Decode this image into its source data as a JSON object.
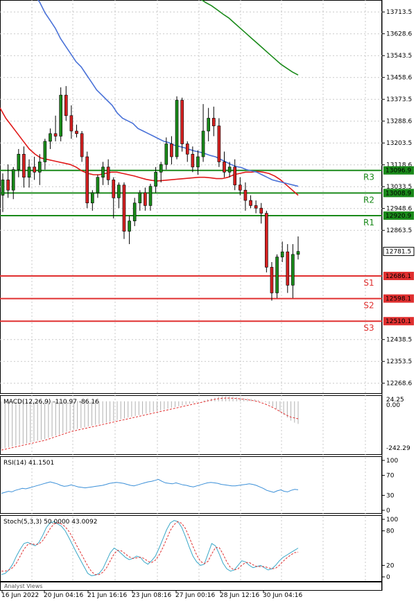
{
  "colors": {
    "bull": "#1a8a1a",
    "bear": "#d42020",
    "resistance": "#1a8a1a",
    "support": "#e03030",
    "ma_red": "#e01818",
    "ma_blue": "#4a72d8",
    "ma_green": "#1a8a1a",
    "macd_signal": "#e03030",
    "macd_hist": "#b0b0b0",
    "rsi": "#3a8fd8",
    "stoch_k": "#3aa8c8",
    "stoch_d": "#e03030",
    "current_price_box": "#ffffff"
  },
  "chart_data": [
    {
      "type": "candlestick",
      "ylim": [
        12230,
        13760
      ],
      "y_ticks": [
        "13713.5",
        "13628.6",
        "13543.5",
        "13458.6",
        "13373.5",
        "13288.6",
        "13203.5",
        "13118.6",
        "13033.5",
        "12948.6",
        "12863.5",
        "12438.5",
        "12353.5",
        "12268.6"
      ],
      "x_ticks": [
        "16 Jun 2022",
        "20 Jun 04:16",
        "21 Jun 16:16",
        "23 Jun 08:16",
        "27 Jun 00:16",
        "28 Jun 12:16",
        "30 Jun 04:16"
      ],
      "current_price": "12781.5",
      "levels": [
        {
          "name": "R3",
          "value": "13096.9",
          "kind": "resistance"
        },
        {
          "name": "R2",
          "value": "13008.9",
          "kind": "resistance"
        },
        {
          "name": "R1",
          "value": "12920.9",
          "kind": "resistance"
        },
        {
          "name": "S1",
          "value": "12686.1",
          "kind": "support"
        },
        {
          "name": "S2",
          "value": "12598.1",
          "kind": "support"
        },
        {
          "name": "S3",
          "value": "12510.1",
          "kind": "support"
        }
      ],
      "candles": [
        {
          "o": 13000,
          "h": 13085,
          "l": 12935,
          "c": 13060
        },
        {
          "o": 13060,
          "h": 13120,
          "l": 12990,
          "c": 13020
        },
        {
          "o": 13020,
          "h": 13110,
          "l": 12985,
          "c": 13100
        },
        {
          "o": 13100,
          "h": 13180,
          "l": 13070,
          "c": 13160
        },
        {
          "o": 13160,
          "h": 13190,
          "l": 13030,
          "c": 13070
        },
        {
          "o": 13070,
          "h": 13140,
          "l": 13030,
          "c": 13110
        },
        {
          "o": 13110,
          "h": 13150,
          "l": 13060,
          "c": 13090
        },
        {
          "o": 13090,
          "h": 13160,
          "l": 13040,
          "c": 13130
        },
        {
          "o": 13130,
          "h": 13220,
          "l": 13100,
          "c": 13210
        },
        {
          "o": 13210,
          "h": 13260,
          "l": 13180,
          "c": 13240
        },
        {
          "o": 13240,
          "h": 13310,
          "l": 13210,
          "c": 13230
        },
        {
          "o": 13230,
          "h": 13420,
          "l": 13210,
          "c": 13390
        },
        {
          "o": 13390,
          "h": 13425,
          "l": 13290,
          "c": 13310
        },
        {
          "o": 13310,
          "h": 13350,
          "l": 13220,
          "c": 13250
        },
        {
          "o": 13250,
          "h": 13275,
          "l": 13225,
          "c": 13240
        },
        {
          "o": 13240,
          "h": 13250,
          "l": 13130,
          "c": 13150
        },
        {
          "o": 13150,
          "h": 13170,
          "l": 12950,
          "c": 12970
        },
        {
          "o": 12970,
          "h": 13020,
          "l": 12940,
          "c": 13010
        },
        {
          "o": 13010,
          "h": 13080,
          "l": 12990,
          "c": 13070
        },
        {
          "o": 13070,
          "h": 13130,
          "l": 13040,
          "c": 13110
        },
        {
          "o": 13110,
          "h": 13140,
          "l": 13040,
          "c": 13060
        },
        {
          "o": 13060,
          "h": 13070,
          "l": 12910,
          "c": 12990
        },
        {
          "o": 12990,
          "h": 13050,
          "l": 12950,
          "c": 13040
        },
        {
          "o": 13040,
          "h": 13050,
          "l": 12830,
          "c": 12860
        },
        {
          "o": 12860,
          "h": 12920,
          "l": 12810,
          "c": 12900
        },
        {
          "o": 12900,
          "h": 12990,
          "l": 12880,
          "c": 12970
        },
        {
          "o": 12970,
          "h": 13020,
          "l": 12940,
          "c": 13010
        },
        {
          "o": 13010,
          "h": 13030,
          "l": 12940,
          "c": 12960
        },
        {
          "o": 12960,
          "h": 13045,
          "l": 12940,
          "c": 13035
        },
        {
          "o": 13035,
          "h": 13110,
          "l": 13010,
          "c": 13090
        },
        {
          "o": 13090,
          "h": 13130,
          "l": 13050,
          "c": 13120
        },
        {
          "o": 13120,
          "h": 13225,
          "l": 13100,
          "c": 13200
        },
        {
          "o": 13200,
          "h": 13230,
          "l": 13120,
          "c": 13150
        },
        {
          "o": 13150,
          "h": 13385,
          "l": 13140,
          "c": 13370
        },
        {
          "o": 13370,
          "h": 13380,
          "l": 13170,
          "c": 13200
        },
        {
          "o": 13200,
          "h": 13210,
          "l": 13130,
          "c": 13160
        },
        {
          "o": 13160,
          "h": 13190,
          "l": 13090,
          "c": 13110
        },
        {
          "o": 13110,
          "h": 13175,
          "l": 13080,
          "c": 13150
        },
        {
          "o": 13150,
          "h": 13355,
          "l": 13130,
          "c": 13250
        },
        {
          "o": 13250,
          "h": 13340,
          "l": 13210,
          "c": 13300
        },
        {
          "o": 13300,
          "h": 13345,
          "l": 13230,
          "c": 13270
        },
        {
          "o": 13270,
          "h": 13300,
          "l": 13110,
          "c": 13130
        },
        {
          "o": 13130,
          "h": 13170,
          "l": 13070,
          "c": 13090
        },
        {
          "o": 13090,
          "h": 13130,
          "l": 13070,
          "c": 13110
        },
        {
          "o": 13110,
          "h": 13140,
          "l": 13020,
          "c": 13040
        },
        {
          "o": 13040,
          "h": 13070,
          "l": 13000,
          "c": 13020
        },
        {
          "o": 13020,
          "h": 13050,
          "l": 12940,
          "c": 12980
        },
        {
          "o": 12980,
          "h": 13000,
          "l": 12950,
          "c": 12960
        },
        {
          "o": 12960,
          "h": 12980,
          "l": 12930,
          "c": 12950
        },
        {
          "o": 12950,
          "h": 12970,
          "l": 12890,
          "c": 12930
        },
        {
          "o": 12930,
          "h": 12940,
          "l": 12700,
          "c": 12720
        },
        {
          "o": 12720,
          "h": 12740,
          "l": 12590,
          "c": 12620
        },
        {
          "o": 12620,
          "h": 12770,
          "l": 12600,
          "c": 12760
        },
        {
          "o": 12760,
          "h": 12820,
          "l": 12740,
          "c": 12780
        },
        {
          "o": 12780,
          "h": 12810,
          "l": 12620,
          "c": 12650
        },
        {
          "o": 12650,
          "h": 12810,
          "l": 12600,
          "c": 12770
        },
        {
          "o": 12770,
          "h": 12840,
          "l": 12750,
          "c": 12781.5
        }
      ],
      "ma_red": [
        13340,
        13300,
        13270,
        13240,
        13210,
        13180,
        13160,
        13145,
        13140,
        13135,
        13130,
        13125,
        13120,
        13110,
        13095,
        13085,
        13080,
        13080,
        13085,
        13090,
        13090,
        13085,
        13080,
        13075,
        13068,
        13062,
        13058,
        13056,
        13058,
        13060,
        13062,
        13064,
        13066,
        13068,
        13070,
        13070,
        13068,
        13065,
        13065,
        13070,
        13080,
        13085,
        13090,
        13090,
        13093,
        13090,
        13085,
        13075,
        13060,
        13040,
        13020,
        13000
      ],
      "ma_blue": [
        13780,
        13750,
        13710,
        13680,
        13650,
        13610,
        13580,
        13550,
        13520,
        13500,
        13470,
        13440,
        13410,
        13390,
        13370,
        13350,
        13320,
        13300,
        13290,
        13280,
        13260,
        13250,
        13240,
        13230,
        13220,
        13210,
        13205,
        13195,
        13190,
        13185,
        13178,
        13172,
        13168,
        13162,
        13155,
        13150,
        13140,
        13130,
        13120,
        13112,
        13108,
        13100,
        13095,
        13090,
        13080,
        13070,
        13060,
        13055,
        13050,
        13045,
        13040,
        13035
      ],
      "ma_green": [
        13780,
        13765,
        13750,
        13738,
        13722,
        13705,
        13690,
        13670,
        13650,
        13630,
        13610,
        13590,
        13570,
        13550,
        13530,
        13510,
        13495,
        13480,
        13468
      ]
    },
    {
      "type": "line",
      "name": "MACD",
      "label": "MACD(12,26,9) -110.97 -86.16",
      "y_ticks": [
        "24.25",
        "0.00",
        "-242.29"
      ],
      "ylim": [
        -260,
        30
      ],
      "histogram": [
        -235,
        -230,
        -226,
        -222,
        -218,
        -214,
        -210,
        -206,
        -202,
        -198,
        -194,
        -190,
        -186,
        -180,
        -174,
        -168,
        -162,
        -156,
        -150,
        -144,
        -140,
        -136,
        -132,
        -128,
        -124,
        -120,
        -116,
        -112,
        -108,
        -104,
        -100,
        -96,
        -92,
        -88,
        -84,
        -80,
        -76,
        -72,
        -68,
        -64,
        -60,
        -56,
        -52,
        -48,
        -44,
        -40,
        -36,
        -32,
        -28,
        -24,
        -20,
        -16,
        -12,
        -8,
        -4,
        0,
        5,
        10,
        14,
        18,
        22,
        24,
        24,
        23,
        22,
        20,
        18,
        16,
        14,
        12,
        10,
        6,
        2,
        -5,
        -14,
        -25,
        -38,
        -52,
        -66,
        -80,
        -95,
        -105,
        -110.97
      ],
      "signal": [
        -240,
        -236,
        -232,
        -228,
        -224,
        -220,
        -216,
        -212,
        -208,
        -204,
        -200,
        -196,
        -192,
        -186,
        -180,
        -174,
        -168,
        -162,
        -156,
        -150,
        -146,
        -142,
        -138,
        -134,
        -130,
        -126,
        -122,
        -118,
        -114,
        -110,
        -106,
        -102,
        -98,
        -94,
        -90,
        -86,
        -82,
        -78,
        -74,
        -70,
        -66,
        -62,
        -58,
        -54,
        -50,
        -46,
        -42,
        -38,
        -34,
        -30,
        -26,
        -22,
        -18,
        -14,
        -10,
        -6,
        -2,
        2,
        6,
        10,
        13,
        15,
        16,
        16,
        15,
        14,
        12,
        10,
        8,
        5,
        2,
        -2,
        -8,
        -14,
        -22,
        -30,
        -40,
        -50,
        -60,
        -70,
        -78,
        -82,
        -86.16
      ]
    },
    {
      "type": "line",
      "name": "RSI",
      "label": "RSI(14) 41.1501",
      "y_ticks": [
        "100",
        "70",
        "30",
        "0"
      ],
      "ylim": [
        0,
        100
      ],
      "values": [
        34,
        36,
        38,
        37,
        40,
        42,
        44,
        43,
        45,
        47,
        49,
        51,
        53,
        55,
        57,
        55,
        53,
        50,
        48,
        49,
        51,
        49,
        47,
        46,
        45,
        46,
        47,
        48,
        49,
        50,
        52,
        54,
        55,
        56,
        55,
        54,
        52,
        50,
        49,
        51,
        53,
        55,
        57,
        58,
        60,
        62,
        58,
        55,
        54,
        53,
        55,
        53,
        51,
        50,
        48,
        47,
        49,
        51,
        53,
        55,
        56,
        55,
        54,
        52,
        51,
        50,
        49,
        49,
        50,
        51,
        52,
        53,
        52,
        50,
        47,
        44,
        40,
        38,
        36,
        39,
        41,
        38,
        37,
        40,
        42,
        41.1501
      ]
    },
    {
      "type": "line",
      "name": "Stoch",
      "label": "Stoch(5,3,3) 50.0000 43.0092",
      "y_ticks": [
        "100",
        "80",
        "20",
        "0"
      ],
      "ylim": [
        0,
        100
      ],
      "k": [
        4,
        6,
        12,
        22,
        36,
        48,
        58,
        60,
        57,
        54,
        60,
        72,
        86,
        94,
        96,
        92,
        88,
        80,
        68,
        55,
        42,
        30,
        18,
        6,
        2,
        3,
        6,
        14,
        28,
        42,
        50,
        46,
        40,
        34,
        30,
        32,
        36,
        34,
        26,
        22,
        28,
        36,
        50,
        66,
        82,
        94,
        98,
        96,
        86,
        70,
        52,
        36,
        26,
        20,
        22,
        40,
        58,
        54,
        40,
        24,
        14,
        10,
        12,
        20,
        28,
        26,
        20,
        16,
        18,
        20,
        16,
        12,
        14,
        20,
        28,
        34,
        38,
        42,
        46,
        50
      ],
      "d": [
        10,
        10,
        12,
        16,
        24,
        36,
        48,
        56,
        58,
        56,
        57,
        63,
        73,
        84,
        92,
        94,
        92,
        87,
        79,
        68,
        55,
        43,
        31,
        19,
        9,
        4,
        4,
        8,
        16,
        28,
        40,
        46,
        45,
        40,
        35,
        32,
        33,
        34,
        32,
        27,
        25,
        29,
        38,
        51,
        66,
        81,
        91,
        96,
        93,
        84,
        69,
        53,
        38,
        27,
        23,
        27,
        40,
        51,
        51,
        40,
        26,
        16,
        12,
        14,
        20,
        25,
        25,
        21,
        18,
        18,
        18,
        16,
        14,
        15,
        20,
        27,
        33,
        38,
        42,
        43.0092
      ]
    }
  ],
  "footer": {
    "analyst_views": "Analyst Views"
  }
}
